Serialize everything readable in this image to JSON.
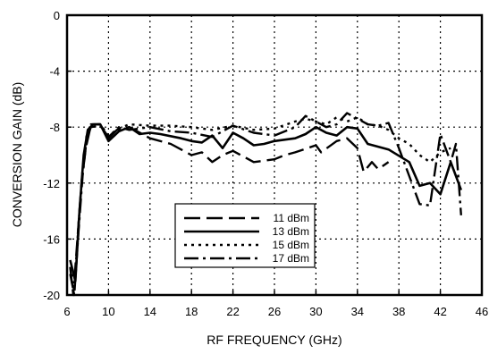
{
  "chart_data": {
    "type": "line",
    "xlabel": "RF FREQUENCY (GHz)",
    "ylabel": "CONVERSION GAIN (dB)",
    "xlim": [
      6,
      46
    ],
    "ylim": [
      -20,
      0
    ],
    "x_ticks": [
      6,
      10,
      14,
      18,
      22,
      26,
      30,
      34,
      38,
      42,
      46
    ],
    "y_ticks": [
      0,
      -4,
      -8,
      -12,
      -16,
      -20
    ],
    "grid": true,
    "legend_position": "bottom-center",
    "colors": {
      "line": "#000000",
      "grid": "#000000",
      "background": "#ffffff"
    },
    "series": [
      {
        "name": "11 dBm",
        "dash": "long-dash",
        "points": [
          [
            6.3,
            -18
          ],
          [
            6.6,
            -20
          ],
          [
            7,
            -16
          ],
          [
            7.4,
            -12
          ],
          [
            7.8,
            -9.5
          ],
          [
            8.2,
            -8.2
          ],
          [
            8.6,
            -7.8
          ],
          [
            9.2,
            -7.8
          ],
          [
            10,
            -8.8
          ],
          [
            10.8,
            -8.2
          ],
          [
            12,
            -8
          ],
          [
            14,
            -8.8
          ],
          [
            16,
            -9.2
          ],
          [
            18,
            -10
          ],
          [
            19,
            -9.8
          ],
          [
            20,
            -10.5
          ],
          [
            21,
            -10
          ],
          [
            22,
            -9.7
          ],
          [
            24,
            -10.5
          ],
          [
            26,
            -10.3
          ],
          [
            27,
            -10
          ],
          [
            28,
            -9.8
          ],
          [
            30,
            -9.3
          ],
          [
            30.5,
            -9.8
          ],
          [
            32,
            -9
          ],
          [
            33,
            -8.8
          ],
          [
            34,
            -9.5
          ],
          [
            34.6,
            -11.2
          ],
          [
            35.4,
            -10.5
          ],
          [
            36,
            -11
          ],
          [
            37,
            -10.5
          ]
        ]
      },
      {
        "name": "13 dBm",
        "dash": "solid",
        "points": [
          [
            6.3,
            -17.5
          ],
          [
            6.8,
            -19
          ],
          [
            7.2,
            -14
          ],
          [
            7.6,
            -10
          ],
          [
            8,
            -8.2
          ],
          [
            8.5,
            -7.8
          ],
          [
            9.2,
            -7.8
          ],
          [
            10,
            -9
          ],
          [
            11,
            -8.3
          ],
          [
            12,
            -8
          ],
          [
            13,
            -8.5
          ],
          [
            14,
            -8.4
          ],
          [
            15,
            -8.5
          ],
          [
            17,
            -8.8
          ],
          [
            18,
            -9
          ],
          [
            19,
            -9.1
          ],
          [
            20,
            -8.6
          ],
          [
            21,
            -9.5
          ],
          [
            22,
            -8.4
          ],
          [
            23,
            -8.8
          ],
          [
            24,
            -9.3
          ],
          [
            25,
            -9.2
          ],
          [
            26,
            -9
          ],
          [
            28,
            -8.8
          ],
          [
            29,
            -8.5
          ],
          [
            30,
            -8
          ],
          [
            31,
            -8.4
          ],
          [
            32,
            -8.6
          ],
          [
            33,
            -8
          ],
          [
            34,
            -8.1
          ],
          [
            35,
            -9.2
          ],
          [
            37,
            -9.6
          ],
          [
            39,
            -10.5
          ],
          [
            40,
            -12.2
          ],
          [
            41,
            -12
          ],
          [
            42,
            -12.8
          ],
          [
            43,
            -10.5
          ],
          [
            44,
            -12.5
          ]
        ]
      },
      {
        "name": "15 dBm",
        "dash": "dot",
        "points": [
          [
            6.3,
            -18
          ],
          [
            6.7,
            -19.5
          ],
          [
            7.1,
            -15
          ],
          [
            7.5,
            -11
          ],
          [
            7.9,
            -8.5
          ],
          [
            8.3,
            -7.8
          ],
          [
            9.2,
            -7.8
          ],
          [
            10,
            -8.6
          ],
          [
            11,
            -8.1
          ],
          [
            12,
            -7.8
          ],
          [
            14,
            -7.9
          ],
          [
            16,
            -7.9
          ],
          [
            18,
            -8
          ],
          [
            20,
            -8.2
          ],
          [
            22,
            -7.9
          ],
          [
            24,
            -8.2
          ],
          [
            26,
            -8.1
          ],
          [
            28,
            -7.6
          ],
          [
            29,
            -7.4
          ],
          [
            30,
            -7.6
          ],
          [
            31,
            -7.8
          ],
          [
            32,
            -7.3
          ],
          [
            33,
            -7.6
          ],
          [
            34,
            -7.3
          ],
          [
            35,
            -7.8
          ],
          [
            36,
            -7.9
          ],
          [
            37,
            -8.2
          ],
          [
            38,
            -8.8
          ],
          [
            39,
            -9.2
          ],
          [
            40,
            -10
          ],
          [
            41,
            -10.5
          ],
          [
            42,
            -9.8
          ],
          [
            43,
            -9.5
          ]
        ]
      },
      {
        "name": "17 dBm",
        "dash": "dash-dot",
        "points": [
          [
            6.3,
            -18.5
          ],
          [
            6.7,
            -20
          ],
          [
            7.1,
            -15.5
          ],
          [
            7.5,
            -11.5
          ],
          [
            7.9,
            -8.8
          ],
          [
            8.3,
            -8
          ],
          [
            9.2,
            -7.9
          ],
          [
            10,
            -8.7
          ],
          [
            11,
            -8
          ],
          [
            12,
            -8.2
          ],
          [
            14,
            -8
          ],
          [
            16,
            -8.3
          ],
          [
            18,
            -8.4
          ],
          [
            20,
            -8.7
          ],
          [
            22,
            -7.9
          ],
          [
            24,
            -8.4
          ],
          [
            26,
            -8.6
          ],
          [
            28,
            -8
          ],
          [
            29,
            -7.2
          ],
          [
            30,
            -7.6
          ],
          [
            31,
            -8
          ],
          [
            32,
            -7.8
          ],
          [
            33,
            -7
          ],
          [
            34,
            -7.4
          ],
          [
            35,
            -7.8
          ],
          [
            36,
            -7.9
          ],
          [
            37,
            -7.7
          ],
          [
            38,
            -9.5
          ],
          [
            39,
            -11.5
          ],
          [
            40,
            -13.5
          ],
          [
            41,
            -13.6
          ],
          [
            42,
            -8.5
          ],
          [
            43,
            -10.5
          ],
          [
            43.5,
            -9.2
          ],
          [
            44,
            -14.3
          ]
        ]
      }
    ]
  }
}
